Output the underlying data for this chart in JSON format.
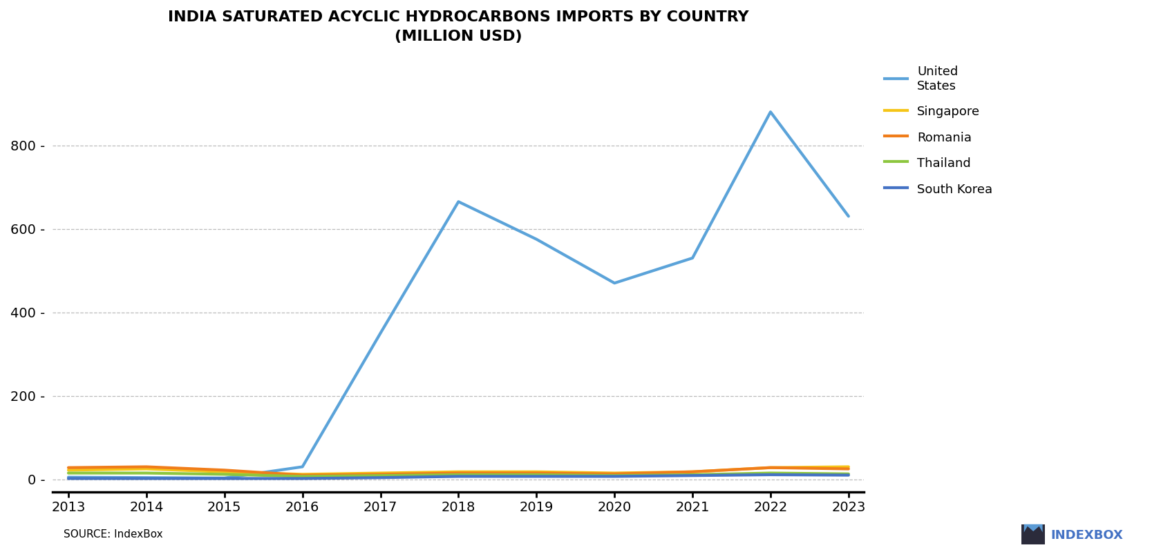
{
  "title": "INDIA SATURATED ACYCLIC HYDROCARBONS IMPORTS BY COUNTRY\n(MILLION USD)",
  "years": [
    2013,
    2014,
    2015,
    2016,
    2017,
    2018,
    2019,
    2020,
    2021,
    2022,
    2023
  ],
  "series": {
    "United States": {
      "values": [
        5,
        4,
        3,
        30,
        350,
        665,
        575,
        470,
        530,
        880,
        630
      ],
      "color": "#5BA3D9"
    },
    "Singapore": {
      "values": [
        22,
        25,
        18,
        12,
        15,
        18,
        18,
        15,
        18,
        28,
        30
      ],
      "color": "#F5C518"
    },
    "Romania": {
      "values": [
        28,
        30,
        22,
        10,
        12,
        15,
        15,
        13,
        18,
        28,
        25
      ],
      "color": "#F07D1A"
    },
    "Thailand": {
      "values": [
        15,
        15,
        12,
        7,
        9,
        11,
        11,
        9,
        11,
        15,
        13
      ],
      "color": "#8DC63F"
    },
    "South Korea": {
      "values": [
        2,
        2,
        2,
        2,
        4,
        7,
        7,
        7,
        9,
        11,
        10
      ],
      "color": "#4472C4"
    }
  },
  "ylim": [
    -30,
    1000
  ],
  "yticks": [
    0,
    200,
    400,
    600,
    800
  ],
  "source_text": "SOURCE: IndexBox",
  "background_color": "#FFFFFF",
  "grid_color": "#BBBBBB",
  "title_fontsize": 16,
  "legend_order": [
    "United States",
    "Singapore",
    "Romania",
    "Thailand",
    "South Korea"
  ],
  "legend_labels": [
    "United\nStates",
    "Singapore",
    "Romania",
    "Thailand",
    "South Korea"
  ]
}
